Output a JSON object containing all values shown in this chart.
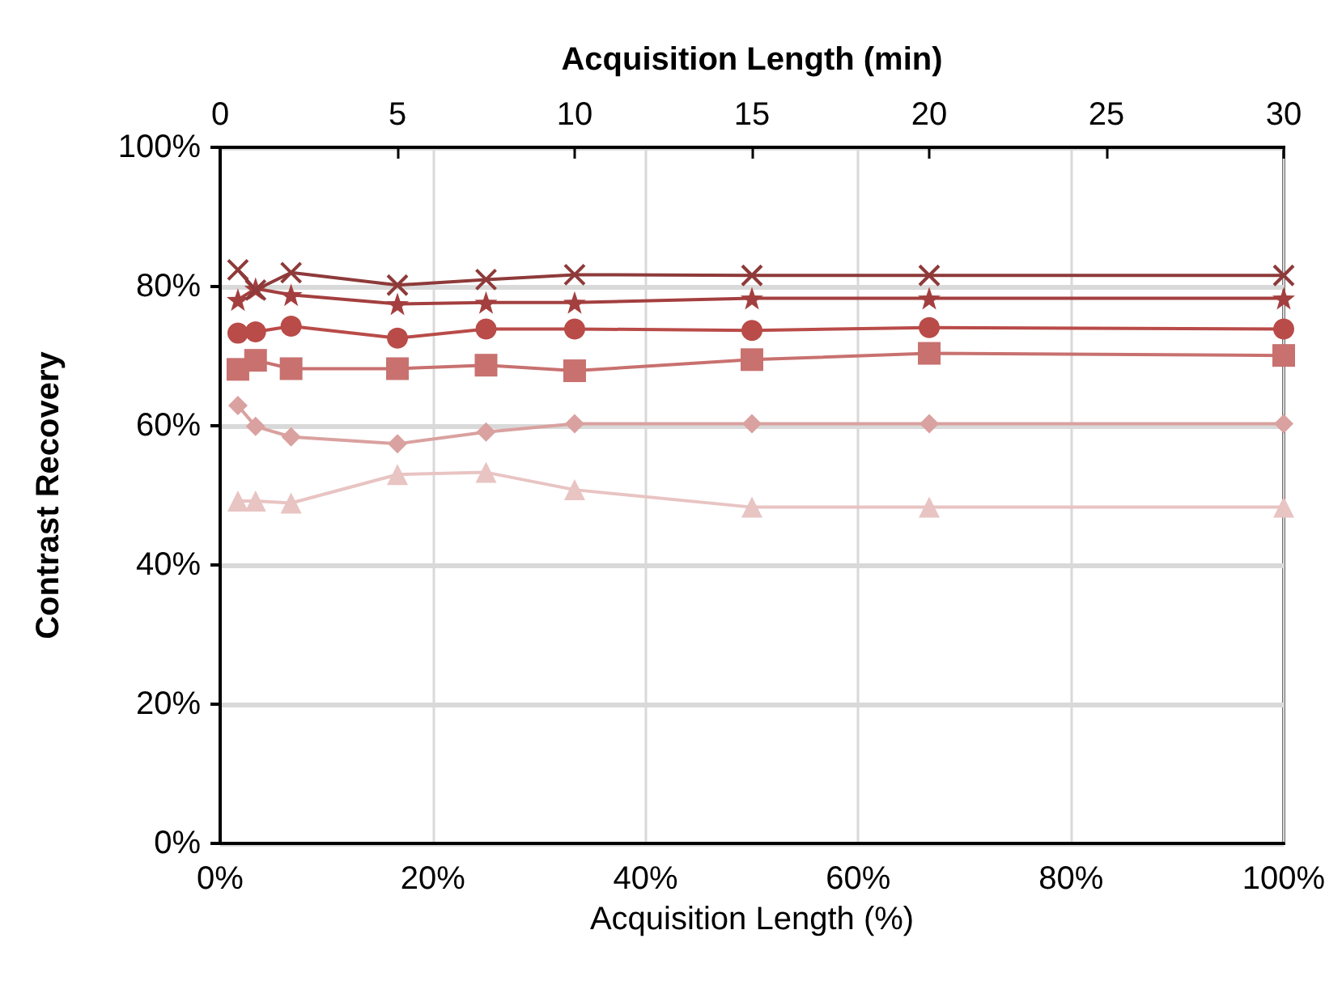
{
  "chart_data": {
    "type": "line",
    "xlabel": "Acquisition Length (%)",
    "x2label": "Acquisition Length (min)",
    "ylabel": "Contrast Recovery",
    "x": [
      1.67,
      3.33,
      6.67,
      16.67,
      25,
      33.33,
      50,
      66.67,
      100
    ],
    "series": [
      {
        "color": "#8e3a3a",
        "marker": "cross",
        "values": [
          82.4,
          79.5,
          82.0,
          80.2,
          81.0,
          81.7,
          81.6,
          81.6,
          81.6
        ]
      },
      {
        "color": "#a43f3f",
        "marker": "star",
        "values": [
          78.1,
          79.7,
          78.8,
          77.5,
          77.7,
          77.7,
          78.3,
          78.3,
          78.3
        ]
      },
      {
        "color": "#b94b48",
        "marker": "circle",
        "values": [
          73.3,
          73.5,
          74.3,
          72.6,
          73.9,
          73.9,
          73.7,
          74.1,
          73.9
        ]
      },
      {
        "color": "#c8716f",
        "marker": "square",
        "values": [
          68.1,
          69.4,
          68.2,
          68.2,
          68.7,
          67.9,
          69.5,
          70.4,
          70.1
        ]
      },
      {
        "color": "#d9a19f",
        "marker": "diamond",
        "values": [
          62.9,
          59.9,
          58.4,
          57.4,
          59.1,
          60.3,
          60.3,
          60.3,
          60.3
        ]
      },
      {
        "color": "#e8c4c3",
        "marker": "triangle",
        "values": [
          49.2,
          49.2,
          48.9,
          53.0,
          53.3,
          50.8,
          48.3,
          48.3,
          48.3
        ]
      }
    ],
    "xlim": [
      0,
      100
    ],
    "xticks": [
      {
        "value": 0,
        "label": "0%"
      },
      {
        "value": 20,
        "label": "20%"
      },
      {
        "value": 40,
        "label": "40%"
      },
      {
        "value": 60,
        "label": "60%"
      },
      {
        "value": 80,
        "label": "80%"
      },
      {
        "value": 100,
        "label": "100%"
      }
    ],
    "x2lim": [
      0,
      30
    ],
    "x2ticks": [
      0,
      5,
      10,
      15,
      20,
      25,
      30
    ],
    "ylim": [
      0,
      100
    ],
    "yticks": [
      {
        "value": 0,
        "label": "0%"
      },
      {
        "value": 20,
        "label": "20%"
      },
      {
        "value": 40,
        "label": "40%"
      },
      {
        "value": 60,
        "label": "60%"
      },
      {
        "value": 80,
        "label": "80%"
      },
      {
        "value": 100,
        "label": "100%"
      }
    ],
    "grid": true,
    "line_style": "solid"
  }
}
